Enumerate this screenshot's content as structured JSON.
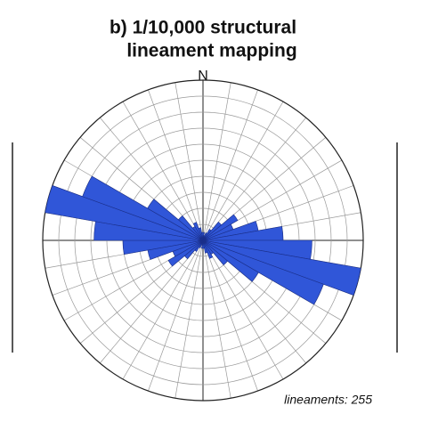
{
  "chart_data": {
    "type": "rose",
    "title_lines": [
      "b) 1/10,000 structural",
      "lineament mapping"
    ],
    "north_label": "N",
    "annotation": "lineaments: 255",
    "bin_width_deg": 10,
    "bins_start_deg": [
      0,
      10,
      20,
      30,
      40,
      50,
      60,
      70,
      80,
      90,
      100,
      110,
      120,
      130,
      140,
      150,
      160,
      170
    ],
    "values": [
      0.5,
      0.3,
      0.5,
      0.8,
      1.5,
      2.5,
      2.0,
      3.5,
      5.0,
      6.8,
      10,
      8,
      4,
      2,
      1,
      1.2,
      0.8,
      0.5
    ],
    "bidirectional": true,
    "color": "#3056d8",
    "rlim": [
      0,
      10
    ],
    "rticks": [
      1,
      2,
      3,
      4,
      5,
      6,
      7,
      8,
      9,
      10
    ],
    "grid": true
  }
}
